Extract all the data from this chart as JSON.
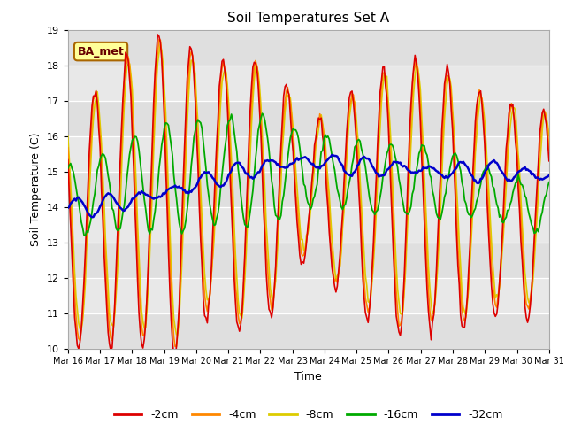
{
  "title": "Soil Temperatures Set A",
  "xlabel": "Time",
  "ylabel": "Soil Temperature (C)",
  "annotation": "BA_met",
  "x_tick_labels": [
    "Mar 16",
    "Mar 17",
    "Mar 18",
    "Mar 19",
    "Mar 20",
    "Mar 21",
    "Mar 22",
    "Mar 23",
    "Mar 24",
    "Mar 25",
    "Mar 26",
    "Mar 27",
    "Mar 28",
    "Mar 29",
    "Mar 30",
    "Mar 31"
  ],
  "ylim": [
    10.0,
    19.0
  ],
  "yticks": [
    10.0,
    11.0,
    12.0,
    13.0,
    14.0,
    15.0,
    16.0,
    17.0,
    18.0,
    19.0
  ],
  "line_colors": {
    "2cm": "#dd0000",
    "4cm": "#ff8800",
    "8cm": "#ddcc00",
    "16cm": "#00aa00",
    "32cm": "#0000cc"
  },
  "legend_labels": [
    "-2cm",
    "-4cm",
    "-8cm",
    "-16cm",
    "-32cm"
  ],
  "plot_bg_color": "#e8e8e8",
  "annotation_bg": "#ffff99",
  "annotation_border": "#aa6600",
  "annotation_text_color": "#660000"
}
